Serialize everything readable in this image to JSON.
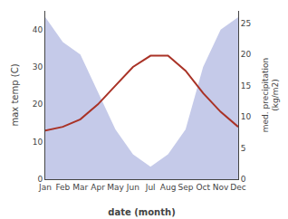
{
  "chart_data": {
    "type": "line",
    "categories": [
      "Jan",
      "Feb",
      "Mar",
      "Apr",
      "May",
      "Jun",
      "Jul",
      "Aug",
      "Sep",
      "Oct",
      "Nov",
      "Dec"
    ],
    "series": [
      {
        "type": "area",
        "axis": "y2",
        "color": "#c5cae9",
        "values": [
          26,
          22,
          20,
          14,
          8,
          4,
          2,
          4,
          8,
          18,
          24,
          26
        ]
      },
      {
        "type": "line",
        "color": "#a93226",
        "values": [
          13,
          14,
          16,
          20,
          25,
          30,
          33,
          33,
          29,
          23,
          18,
          14
        ]
      }
    ],
    "xlabel": "date (month)",
    "ylabel": "max temp (C)",
    "y2label": "med. precipitation\n(kg/m2)",
    "ylim": [
      0,
      45
    ],
    "yticks": [
      0,
      10,
      20,
      30,
      40
    ],
    "y2lim": [
      0,
      27
    ],
    "y2ticks": [
      0,
      5,
      10,
      15,
      20,
      25
    ],
    "grid": false
  }
}
